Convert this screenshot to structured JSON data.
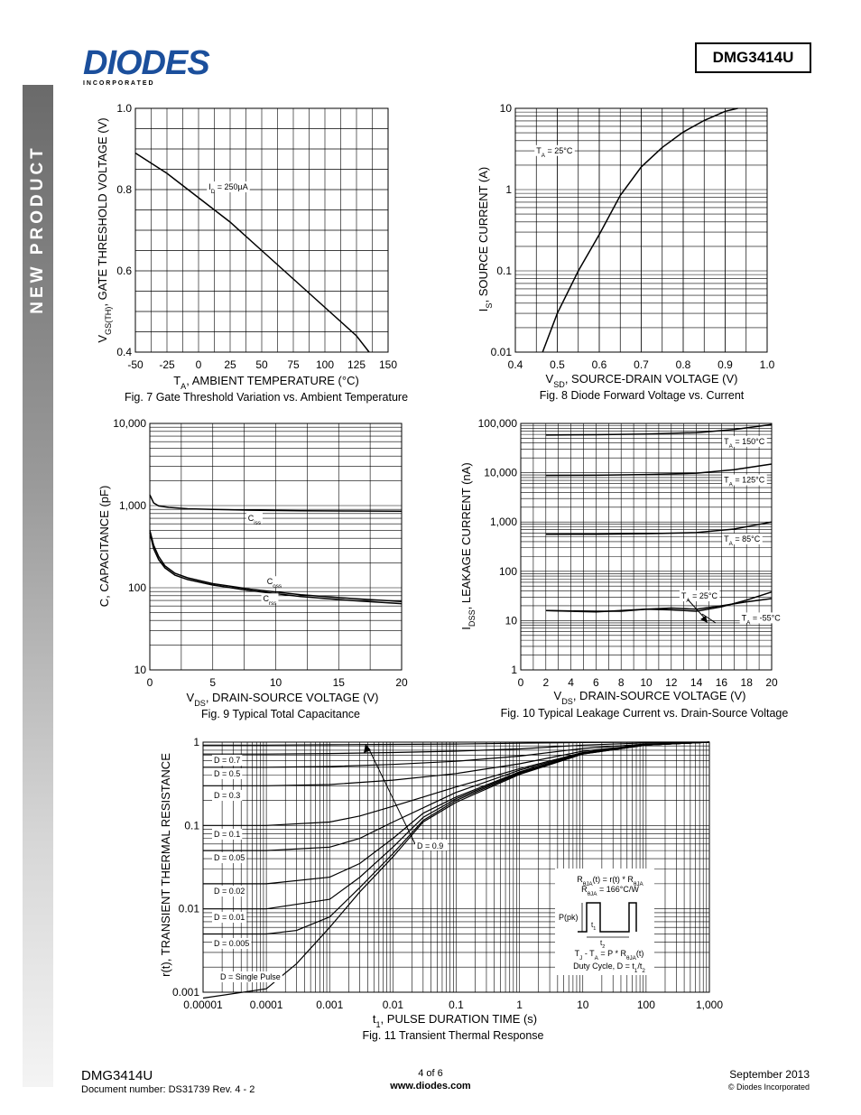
{
  "header": {
    "logo_text": "DIODES",
    "logo_subtext": "I N C O R P O R A T E D",
    "part_number": "DMG3414U",
    "sidebar_label": "NEW PRODUCT"
  },
  "footer": {
    "part_number": "DMG3414U",
    "doc_number": "Document number: DS31739 Rev. 4 - 2",
    "page": "4 of 6",
    "website": "www.diodes.com",
    "date": "September 2013",
    "copyright": "© Diodes Incorporated"
  },
  "colors": {
    "line": "#000000",
    "grid": "#000000",
    "sidebar_dark": "#6a6a6a",
    "logo_blue": "#1b4f9c"
  },
  "chart_data": [
    {
      "id": "fig7",
      "type": "line",
      "title": "Fig. 7 Gate Threshold Variation vs. Ambient Temperature",
      "xlabel_main": "T",
      "xlabel_sub": "A",
      "xlabel_rest": ", AMBIENT TEMPERATURE (°C)",
      "ylabel_main": "V",
      "ylabel_sub": "GS(TH)",
      "ylabel_rest": ", GATE THRESHOLD VOLTAGE (V)",
      "xlim": [
        -50,
        150
      ],
      "ylim": [
        0.4,
        1.0
      ],
      "x_scale": "linear",
      "y_scale": "linear",
      "xticks": [
        -50,
        -25,
        0,
        25,
        50,
        75,
        100,
        125,
        150
      ],
      "xtick_labels": [
        "-50",
        "-25",
        "0",
        "25",
        "50",
        "75",
        "100",
        "125",
        "150"
      ],
      "yticks": [
        0.4,
        0.6,
        0.8,
        1.0
      ],
      "ytick_labels": [
        "0.4",
        "0.6",
        "0.8",
        "1.0"
      ],
      "grid": true,
      "series": [
        {
          "x": [
            -50,
            -25,
            0,
            25,
            50,
            75,
            100,
            125,
            135
          ],
          "y": [
            0.89,
            0.84,
            0.78,
            0.72,
            0.65,
            0.58,
            0.51,
            0.44,
            0.4
          ]
        }
      ],
      "annotations": [
        {
          "main": "I",
          "sub": "D",
          "rest": " = 250µA",
          "x": 8,
          "y": 0.8
        }
      ]
    },
    {
      "id": "fig8",
      "type": "line",
      "title": "Fig. 8 Diode Forward Voltage vs. Current",
      "xlabel_main": "V",
      "xlabel_sub": "SD",
      "xlabel_rest": ", SOURCE-DRAIN VOLTAGE (V)",
      "ylabel_main": "I",
      "ylabel_sub": "S",
      "ylabel_rest": ", SOURCE CURRENT (A)",
      "xlim": [
        0.4,
        1.0
      ],
      "ylim": [
        0.01,
        10
      ],
      "x_scale": "linear",
      "y_scale": "log",
      "xticks": [
        0.4,
        0.5,
        0.6,
        0.7,
        0.8,
        0.9,
        1.0
      ],
      "xtick_labels": [
        "0.4",
        "0.5",
        "0.6",
        "0.7",
        "0.8",
        "0.9",
        "1.0"
      ],
      "yticks": [
        0.01,
        0.1,
        1,
        10
      ],
      "ytick_labels": [
        "0.01",
        "0.1",
        "1",
        "10"
      ],
      "grid": true,
      "series": [
        {
          "x": [
            0.465,
            0.5,
            0.55,
            0.6,
            0.65,
            0.7,
            0.75,
            0.8,
            0.85,
            0.9,
            0.93
          ],
          "y": [
            0.01,
            0.03,
            0.1,
            0.28,
            0.85,
            1.9,
            3.3,
            5.1,
            7.1,
            9.2,
            10
          ]
        }
      ],
      "annotations": [
        {
          "main": "T",
          "sub": "A",
          "rest": " = 25°C",
          "x": 0.45,
          "y": 2.8
        }
      ]
    },
    {
      "id": "fig9",
      "type": "line",
      "title": "Fig. 9 Typical Total Capacitance",
      "xlabel_main": "V",
      "xlabel_sub": "DS",
      "xlabel_rest": ", DRAIN-SOURCE VOLTAGE (V)",
      "ylabel_main": "C, CAPACITANCE (pF)",
      "ylabel_sub": "",
      "ylabel_rest": "",
      "xlim": [
        0,
        20
      ],
      "ylim": [
        10,
        10000
      ],
      "x_scale": "linear",
      "y_scale": "log",
      "xticks": [
        0,
        5,
        10,
        15,
        20
      ],
      "xtick_labels": [
        "0",
        "5",
        "10",
        "15",
        "20"
      ],
      "yticks": [
        10,
        100,
        1000,
        10000
      ],
      "ytick_labels": [
        "10",
        "100",
        "1,000",
        "10,000"
      ],
      "grid": true,
      "series": [
        {
          "name": "C",
          "sub": "iss",
          "x": [
            0,
            0.3,
            0.7,
            1.5,
            3,
            5,
            8,
            12,
            16,
            20
          ],
          "y": [
            1350,
            1080,
            990,
            950,
            915,
            900,
            880,
            865,
            860,
            855
          ]
        },
        {
          "name": "C",
          "sub": "oss",
          "x": [
            0,
            0.3,
            0.7,
            1.2,
            2,
            3,
            5,
            8,
            12,
            16,
            20
          ],
          "y": [
            500,
            330,
            240,
            185,
            150,
            132,
            112,
            96,
            82,
            74,
            68
          ]
        },
        {
          "name": "C",
          "sub": "rss",
          "x": [
            0,
            0.3,
            0.7,
            1.2,
            2,
            3,
            5,
            8,
            12,
            16,
            20
          ],
          "y": [
            470,
            300,
            220,
            175,
            142,
            126,
            108,
            92,
            78,
            70,
            64
          ]
        }
      ],
      "annotations": [
        {
          "main": "C",
          "sub": "iss",
          "rest": "",
          "x": 7.8,
          "y": 650
        },
        {
          "main": "C",
          "sub": "oss",
          "rest": "",
          "x": 9.3,
          "y": 110
        },
        {
          "main": "C",
          "sub": "rss",
          "rest": "",
          "x": 9.0,
          "y": 68
        }
      ]
    },
    {
      "id": "fig10",
      "type": "line",
      "title": "Fig. 10 Typical Leakage Current vs. Drain-Source Voltage",
      "xlabel_main": "V",
      "xlabel_sub": "DS",
      "xlabel_rest": ", DRAIN-SOURCE VOLTAGE (V)",
      "ylabel_main": "I",
      "ylabel_sub": "DSS",
      "ylabel_rest": ", LEAKAGE CURRENT (nA)",
      "xlim": [
        0,
        20
      ],
      "ylim": [
        1,
        100000
      ],
      "x_scale": "linear",
      "y_scale": "log",
      "xticks": [
        0,
        2,
        4,
        6,
        8,
        10,
        12,
        14,
        16,
        18,
        20
      ],
      "xtick_labels": [
        "0",
        "2",
        "4",
        "6",
        "8",
        "10",
        "12",
        "14",
        "16",
        "18",
        "20"
      ],
      "yticks": [
        1,
        10,
        100,
        1000,
        10000,
        100000
      ],
      "ytick_labels": [
        "1",
        "10",
        "100",
        "1,000",
        "10,000",
        "100,000"
      ],
      "grid": true,
      "series": [
        {
          "name": "TA = 150°C",
          "x": [
            2,
            6,
            10,
            14,
            17,
            20
          ],
          "y": [
            58000,
            59000,
            61000,
            65000,
            75000,
            95000
          ]
        },
        {
          "name": "TA = 125°C",
          "x": [
            2,
            6,
            10,
            14,
            17,
            20
          ],
          "y": [
            8800,
            8900,
            9200,
            9800,
            11500,
            15000
          ]
        },
        {
          "name": "TA = 85°C",
          "x": [
            2,
            6,
            10,
            14,
            17,
            20
          ],
          "y": [
            560,
            565,
            580,
            610,
            720,
            1000
          ]
        },
        {
          "name": "TA = 25°C",
          "x": [
            2,
            6,
            10,
            12,
            14,
            16,
            18,
            20
          ],
          "y": [
            16,
            15,
            17,
            18,
            17,
            20,
            24,
            28
          ]
        },
        {
          "name": "TA = -55°C",
          "x": [
            2,
            6,
            8,
            10,
            12,
            14,
            16,
            18,
            20
          ],
          "y": [
            16,
            15.5,
            15.5,
            17,
            16.5,
            15.5,
            19,
            26,
            38
          ]
        }
      ],
      "annotations": [
        {
          "main": "T",
          "sub": "A",
          "rest": " = 150°C",
          "x": 16.2,
          "y": 38000
        },
        {
          "main": "T",
          "sub": "A",
          "rest": " = 125°C",
          "x": 16.2,
          "y": 6300
        },
        {
          "main": "T",
          "sub": "A",
          "rest": " = 85°C",
          "x": 16.2,
          "y": 400
        },
        {
          "main": "T",
          "sub": "A",
          "rest": " = 25°C",
          "x": 12.8,
          "y": 28
        },
        {
          "main": "T",
          "sub": "A",
          "rest": " = -55°C",
          "x": 17.6,
          "y": 10
        }
      ]
    },
    {
      "id": "fig11",
      "type": "line",
      "title": "Fig. 11 Transient Thermal Response",
      "xlabel_main": "t",
      "xlabel_sub": "1",
      "xlabel_rest": ", PULSE DURATION TIME (s)",
      "ylabel_main": "r(t), TRANSIENT THERMAL RESISTANCE",
      "ylabel_sub": "",
      "ylabel_rest": "",
      "xlim": [
        1e-05,
        1000
      ],
      "ylim": [
        0.001,
        1
      ],
      "x_scale": "log",
      "y_scale": "log",
      "xticks": [
        1e-05,
        0.0001,
        0.001,
        0.01,
        0.1,
        1,
        10,
        100,
        1000
      ],
      "xtick_labels": [
        "0.00001",
        "0.0001",
        "0.001",
        "0.01",
        "0.1",
        "1",
        "10",
        "100",
        "1,000"
      ],
      "yticks": [
        0.001,
        0.01,
        0.1,
        1
      ],
      "ytick_labels": [
        "0.001",
        "0.01",
        "0.1",
        "1"
      ],
      "grid": true,
      "series": [
        {
          "name": "D = 0.9",
          "x": [
            1e-05,
            0.0001,
            0.001,
            0.01,
            0.1,
            1,
            10,
            100,
            1000
          ],
          "y": [
            0.92,
            0.92,
            0.93,
            0.94,
            0.95,
            0.97,
            0.99,
            1.0,
            1.0
          ]
        },
        {
          "name": "D = 0.7",
          "x": [
            1e-05,
            0.0001,
            0.001,
            0.01,
            0.1,
            1,
            10,
            100,
            1000
          ],
          "y": [
            0.72,
            0.72,
            0.73,
            0.75,
            0.78,
            0.83,
            0.92,
            0.98,
            1.0
          ]
        },
        {
          "name": "D = 0.5",
          "x": [
            1e-05,
            0.0001,
            0.001,
            0.01,
            0.1,
            1,
            10,
            100,
            1000
          ],
          "y": [
            0.5,
            0.5,
            0.51,
            0.54,
            0.59,
            0.68,
            0.84,
            0.95,
            1.0
          ]
        },
        {
          "name": "D = 0.3",
          "x": [
            1e-05,
            0.0001,
            0.001,
            0.01,
            0.1,
            1,
            10,
            100,
            1000
          ],
          "y": [
            0.3,
            0.3,
            0.31,
            0.35,
            0.42,
            0.55,
            0.78,
            0.93,
            1.0
          ]
        },
        {
          "name": "D = 0.1",
          "x": [
            1e-05,
            0.0001,
            0.001,
            0.003,
            0.01,
            0.1,
            1,
            10,
            100,
            1000
          ],
          "y": [
            0.1,
            0.1,
            0.11,
            0.13,
            0.17,
            0.29,
            0.48,
            0.75,
            0.92,
            1.0
          ]
        },
        {
          "name": "D = 0.05",
          "x": [
            1e-05,
            0.0001,
            0.001,
            0.003,
            0.01,
            0.1,
            1,
            10,
            100,
            1000
          ],
          "y": [
            0.05,
            0.05,
            0.055,
            0.07,
            0.11,
            0.25,
            0.46,
            0.74,
            0.92,
            1.0
          ]
        },
        {
          "name": "D = 0.02",
          "x": [
            1e-05,
            0.0001,
            0.001,
            0.003,
            0.01,
            0.03,
            0.1,
            1,
            10,
            100,
            1000
          ],
          "y": [
            0.02,
            0.02,
            0.024,
            0.035,
            0.07,
            0.14,
            0.22,
            0.44,
            0.73,
            0.92,
            1.0
          ]
        },
        {
          "name": "D = 0.01",
          "x": [
            1e-05,
            0.0001,
            0.001,
            0.003,
            0.01,
            0.03,
            0.1,
            1,
            10,
            100,
            1000
          ],
          "y": [
            0.01,
            0.01,
            0.013,
            0.024,
            0.055,
            0.125,
            0.21,
            0.43,
            0.73,
            0.92,
            1.0
          ]
        },
        {
          "name": "D = 0.005",
          "x": [
            1e-05,
            0.0001,
            0.0003,
            0.001,
            0.003,
            0.01,
            0.03,
            0.1,
            1,
            10,
            100,
            1000
          ],
          "y": [
            0.005,
            0.005,
            0.0055,
            0.008,
            0.018,
            0.046,
            0.115,
            0.2,
            0.42,
            0.72,
            0.92,
            1.0
          ]
        },
        {
          "name": "D = Single Pulse",
          "x": [
            1e-05,
            0.0001,
            0.0003,
            0.001,
            0.003,
            0.01,
            0.03,
            0.1,
            1,
            10,
            100,
            1000
          ],
          "y": [
            0.00085,
            0.0011,
            0.0022,
            0.006,
            0.016,
            0.042,
            0.11,
            0.19,
            0.41,
            0.72,
            0.92,
            1.0
          ]
        }
      ],
      "annotations": [
        {
          "text": "D = 0.7"
        },
        {
          "text": "D = 0.5"
        },
        {
          "text": "D = 0.3"
        },
        {
          "text": "D = 0.1"
        },
        {
          "text": "D = 0.05"
        },
        {
          "text": "D = 0.02"
        },
        {
          "text": "D = 0.01"
        },
        {
          "text": "D = 0.005"
        },
        {
          "text": "D = Single Pulse"
        },
        {
          "text": "D = 0.9"
        }
      ],
      "inset": {
        "rth_line1_main": "R",
        "rth_line1_sub": "θJA",
        "rth_line1_mid": "(t) = r(t) * R",
        "rth_line1_sub2": "θJA",
        "rth_line2_main": "R",
        "rth_line2_sub": "θJA",
        "rth_line2_rest": " = 166°C/W",
        "ppk_label": "P(pk)",
        "t1_main": "t",
        "t1_sub": "1",
        "t2_main": "t",
        "t2_sub": "2",
        "eq_main": "T",
        "eq_sub1": "J",
        "eq_mid": " - T",
        "eq_sub2": "A",
        "eq_mid2": " = P * R",
        "eq_sub3": "θJA",
        "eq_rest": "(t)",
        "duty_main": "Duty Cycle, D = t",
        "duty_sub1": "1",
        "duty_mid": "/t",
        "duty_sub2": "2"
      }
    }
  ]
}
